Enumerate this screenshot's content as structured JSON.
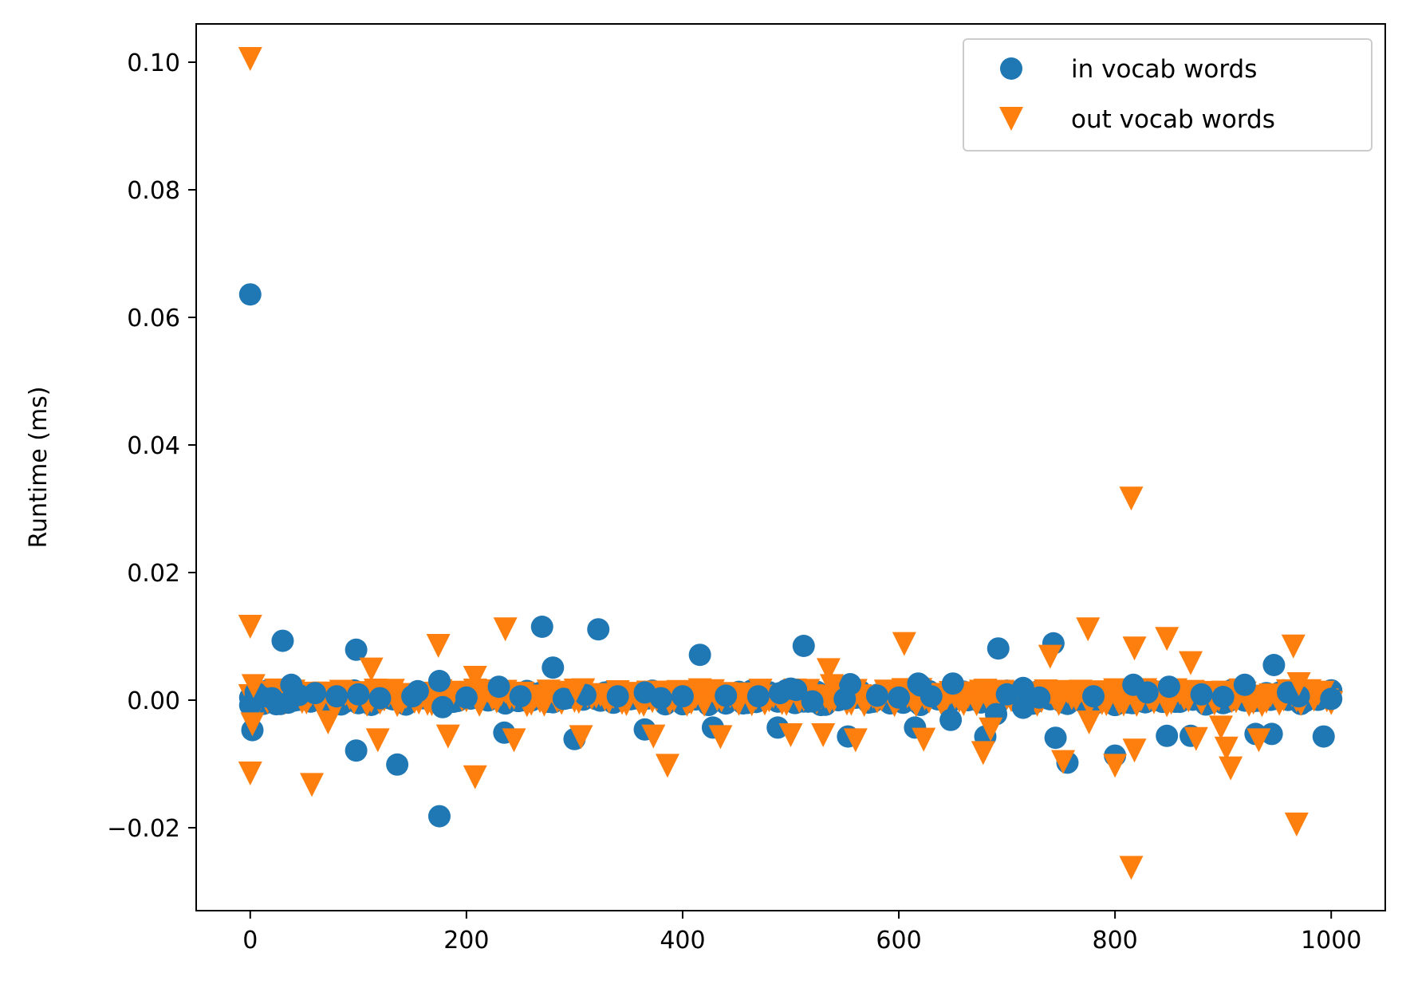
{
  "chart_data": {
    "type": "scatter",
    "title": "",
    "xlabel": "",
    "ylabel": "Runtime (ms)",
    "xlim": [
      -50,
      1050
    ],
    "ylim": [
      -0.033,
      0.106
    ],
    "x_ticks": [
      0,
      200,
      400,
      600,
      800,
      1000
    ],
    "x_tick_labels": [
      "0",
      "200",
      "400",
      "600",
      "800",
      "1000"
    ],
    "y_ticks": [
      -0.02,
      0.0,
      0.02,
      0.04,
      0.06,
      0.08,
      0.1
    ],
    "y_tick_labels": [
      "−0.02",
      "0.00",
      "0.02",
      "0.04",
      "0.06",
      "0.08",
      "0.10"
    ],
    "grid": false,
    "legend_position": "upper-right",
    "series": [
      {
        "name": "in vocab words",
        "marker": "circle",
        "color": "#1f77b4",
        "points": [
          [
            0,
            0.0636
          ],
          [
            0,
            -0.0008
          ],
          [
            2,
            -0.0047
          ],
          [
            5,
            0.0012
          ],
          [
            10,
            0.0005
          ],
          [
            20,
            0.0003
          ],
          [
            25,
            -0.0006
          ],
          [
            30,
            0.0093
          ],
          [
            35,
            -0.0004
          ],
          [
            38,
            0.0024
          ],
          [
            45,
            0.0008
          ],
          [
            60,
            0.0011
          ],
          [
            80,
            0.0006
          ],
          [
            98,
            0.0079
          ],
          [
            98,
            -0.0079
          ],
          [
            100,
            0.0009
          ],
          [
            120,
            0.0003
          ],
          [
            136,
            -0.0101
          ],
          [
            150,
            0.0006
          ],
          [
            155,
            0.0014
          ],
          [
            175,
            0.003
          ],
          [
            175,
            -0.0182
          ],
          [
            178,
            -0.0011
          ],
          [
            200,
            0.0004
          ],
          [
            230,
            0.0021
          ],
          [
            235,
            -0.0051
          ],
          [
            250,
            0.0006
          ],
          [
            270,
            0.0115
          ],
          [
            280,
            0.0051
          ],
          [
            290,
            0.0002
          ],
          [
            300,
            -0.0061
          ],
          [
            310,
            0.0008
          ],
          [
            322,
            0.0111
          ],
          [
            340,
            0.0006
          ],
          [
            365,
            0.0012
          ],
          [
            365,
            -0.0046
          ],
          [
            380,
            0.0003
          ],
          [
            400,
            0.0006
          ],
          [
            416,
            0.0071
          ],
          [
            428,
            -0.0043
          ],
          [
            440,
            0.0007
          ],
          [
            470,
            0.0006
          ],
          [
            488,
            -0.0043
          ],
          [
            490,
            0.0011
          ],
          [
            500,
            0.0018
          ],
          [
            505,
            0.0016
          ],
          [
            512,
            0.0085
          ],
          [
            520,
            -0.0002
          ],
          [
            550,
            0.0002
          ],
          [
            553,
            -0.0057
          ],
          [
            555,
            0.0025
          ],
          [
            580,
            0.0007
          ],
          [
            600,
            0.0004
          ],
          [
            615,
            -0.0043
          ],
          [
            618,
            0.0026
          ],
          [
            620,
            0.0023
          ],
          [
            630,
            0.0006
          ],
          [
            648,
            -0.0031
          ],
          [
            650,
            0.0026
          ],
          [
            680,
            -0.0057
          ],
          [
            690,
            -0.0022
          ],
          [
            692,
            0.0081
          ],
          [
            700,
            0.0009
          ],
          [
            715,
            0.0019
          ],
          [
            715,
            -0.0012
          ],
          [
            730,
            0.0004
          ],
          [
            743,
            0.0089
          ],
          [
            745,
            -0.0059
          ],
          [
            756,
            -0.0098
          ],
          [
            780,
            0.0006
          ],
          [
            800,
            -0.0087
          ],
          [
            817,
            0.0024
          ],
          [
            830,
            0.0012
          ],
          [
            848,
            -0.0056
          ],
          [
            850,
            0.0021
          ],
          [
            870,
            -0.0056
          ],
          [
            880,
            0.0009
          ],
          [
            900,
            0.0005
          ],
          [
            920,
            0.0024
          ],
          [
            930,
            -0.0053
          ],
          [
            945,
            -0.0053
          ],
          [
            947,
            0.0055
          ],
          [
            960,
            0.0012
          ],
          [
            970,
            0.0006
          ],
          [
            993,
            -0.0057
          ],
          [
            1000,
            0.0002
          ]
        ]
      },
      {
        "name": "out vocab words",
        "marker": "triangle-down",
        "color": "#ff7f0e",
        "points": [
          [
            0,
            0.1005
          ],
          [
            0,
            0.0115
          ],
          [
            0,
            -0.0115
          ],
          [
            2,
            -0.0038
          ],
          [
            3,
            0.0022
          ],
          [
            57,
            -0.0133
          ],
          [
            72,
            -0.0035
          ],
          [
            112,
            0.0048
          ],
          [
            118,
            -0.0063
          ],
          [
            174,
            0.0085
          ],
          [
            183,
            -0.0057
          ],
          [
            208,
            0.0035
          ],
          [
            208,
            -0.0121
          ],
          [
            236,
            0.0111
          ],
          [
            244,
            -0.0063
          ],
          [
            301,
            0.0015
          ],
          [
            306,
            -0.0058
          ],
          [
            373,
            -0.0057
          ],
          [
            386,
            -0.0103
          ],
          [
            435,
            -0.0058
          ],
          [
            500,
            -0.0055
          ],
          [
            530,
            -0.0055
          ],
          [
            535,
            0.0047
          ],
          [
            538,
            0.0022
          ],
          [
            560,
            -0.0063
          ],
          [
            605,
            0.0088
          ],
          [
            623,
            -0.0062
          ],
          [
            678,
            -0.0083
          ],
          [
            685,
            -0.0046
          ],
          [
            740,
            0.0068
          ],
          [
            752,
            -0.0097
          ],
          [
            775,
            0.0111
          ],
          [
            776,
            -0.0035
          ],
          [
            800,
            -0.0103
          ],
          [
            815,
            0.0316
          ],
          [
            815,
            -0.0263
          ],
          [
            818,
            0.0081
          ],
          [
            818,
            -0.0079
          ],
          [
            848,
            0.0096
          ],
          [
            870,
            0.0058
          ],
          [
            875,
            -0.0061
          ],
          [
            898,
            -0.0043
          ],
          [
            903,
            -0.0076
          ],
          [
            907,
            -0.0107
          ],
          [
            933,
            -0.0063
          ],
          [
            965,
            0.0084
          ],
          [
            968,
            -0.0195
          ],
          [
            970,
            0.0025
          ]
        ]
      }
    ]
  }
}
